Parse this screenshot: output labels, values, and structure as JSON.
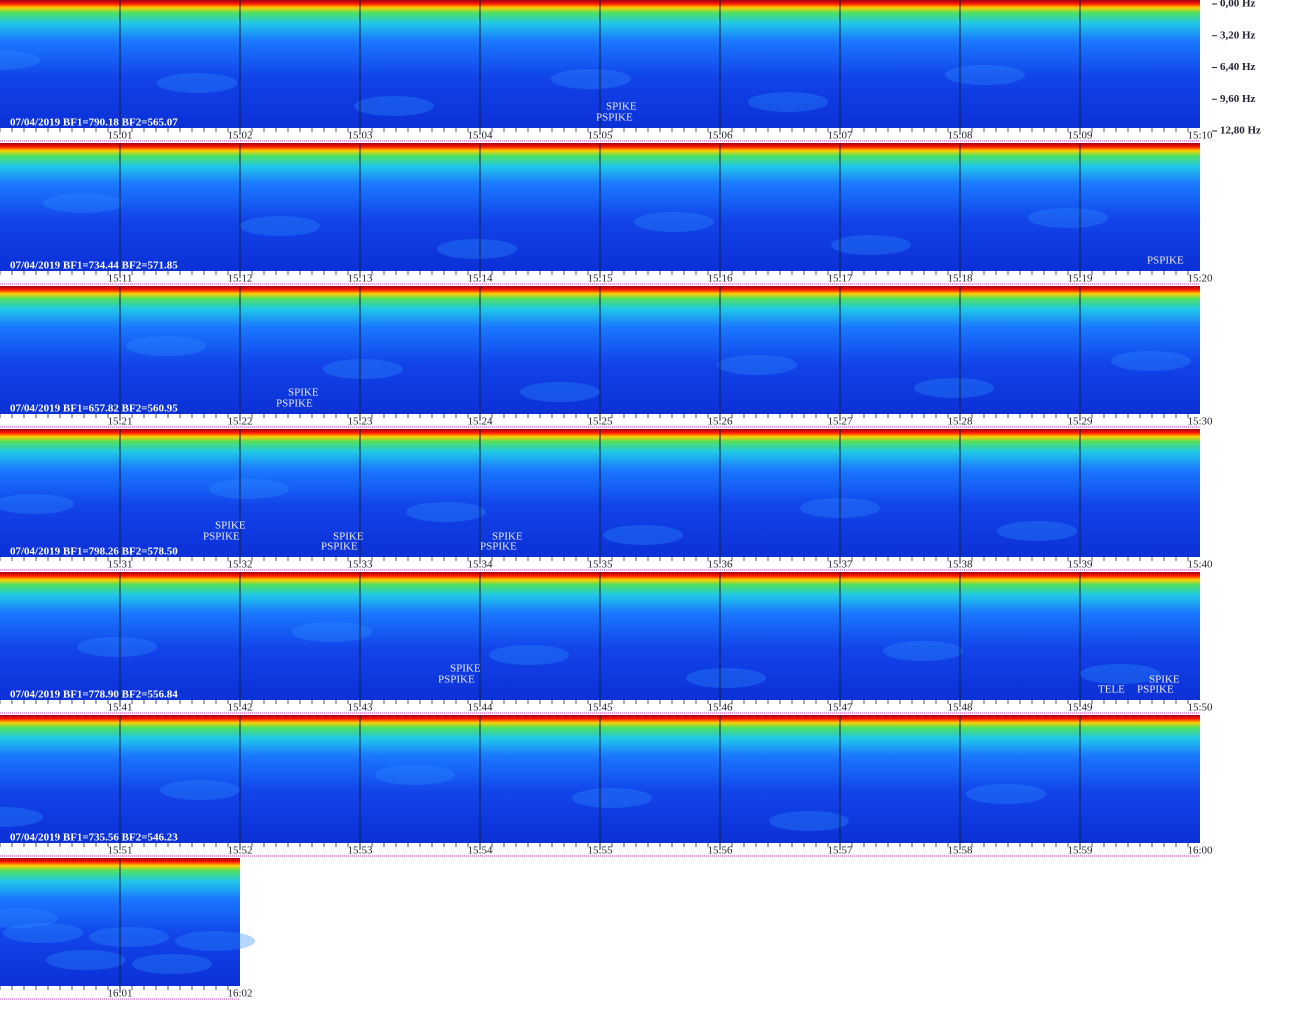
{
  "frequency_axis": {
    "ticks": [
      {
        "value": 0,
        "label": "0,00 Hz"
      },
      {
        "value": 3.2,
        "label": "3,20 Hz"
      },
      {
        "value": 6.4,
        "label": "6,40 Hz"
      },
      {
        "value": 9.6,
        "label": "9,60 Hz"
      },
      {
        "value": 12.8,
        "label": "12,80 Hz"
      }
    ]
  },
  "rows": [
    {
      "label": "07/04/2019 BF1=790.18 BF2=565.07",
      "times": [
        "15:01",
        "15:02",
        "15:03",
        "15:04",
        "15:05",
        "15:06",
        "15:07",
        "15:08",
        "15:09",
        "15:10"
      ],
      "annotations": [
        "SPIKE",
        "PSPIKE"
      ]
    },
    {
      "label": "07/04/2019 BF1=734.44 BF2=571.85",
      "times": [
        "15:11",
        "15:12",
        "15:13",
        "15:14",
        "15:15",
        "15:16",
        "15:17",
        "15:18",
        "15:19",
        "15:20"
      ],
      "annotations": [
        "PSPIKE"
      ]
    },
    {
      "label": "07/04/2019 BF1=657.82 BF2=560.95",
      "times": [
        "15:21",
        "15:22",
        "15:23",
        "15:24",
        "15:25",
        "15:26",
        "15:27",
        "15:28",
        "15:29",
        "15:30"
      ],
      "annotations": [
        "SPIKE",
        "PSPIKE"
      ]
    },
    {
      "label": "07/04/2019 BF1=798.26 BF2=578.50",
      "times": [
        "15:31",
        "15:32",
        "15:33",
        "15:34",
        "15:35",
        "15:36",
        "15:37",
        "15:38",
        "15:39",
        "15:40"
      ],
      "annotations": [
        "SPIKE",
        "PSPIKE",
        "SPIKE",
        "PSPIKE",
        "SPIKE",
        "PSPIKE"
      ]
    },
    {
      "label": "07/04/2019 BF1=778.90 BF2=556.84",
      "times": [
        "15:41",
        "15:42",
        "15:43",
        "15:44",
        "15:45",
        "15:46",
        "15:47",
        "15:48",
        "15:49",
        "15:50"
      ],
      "annotations": [
        "SPIKE",
        "PSPIKE",
        "SPIKE",
        "TELE",
        "PSPIKE"
      ]
    },
    {
      "label": "07/04/2019 BF1=735.56 BF2=546.23",
      "times": [
        "15:51",
        "15:52",
        "15:53",
        "15:54",
        "15:55",
        "15:56",
        "15:57",
        "15:58",
        "15:59",
        "16:00"
      ],
      "annotations": []
    },
    {
      "times": [
        "16:01",
        "16:02"
      ],
      "annotations": []
    }
  ]
}
